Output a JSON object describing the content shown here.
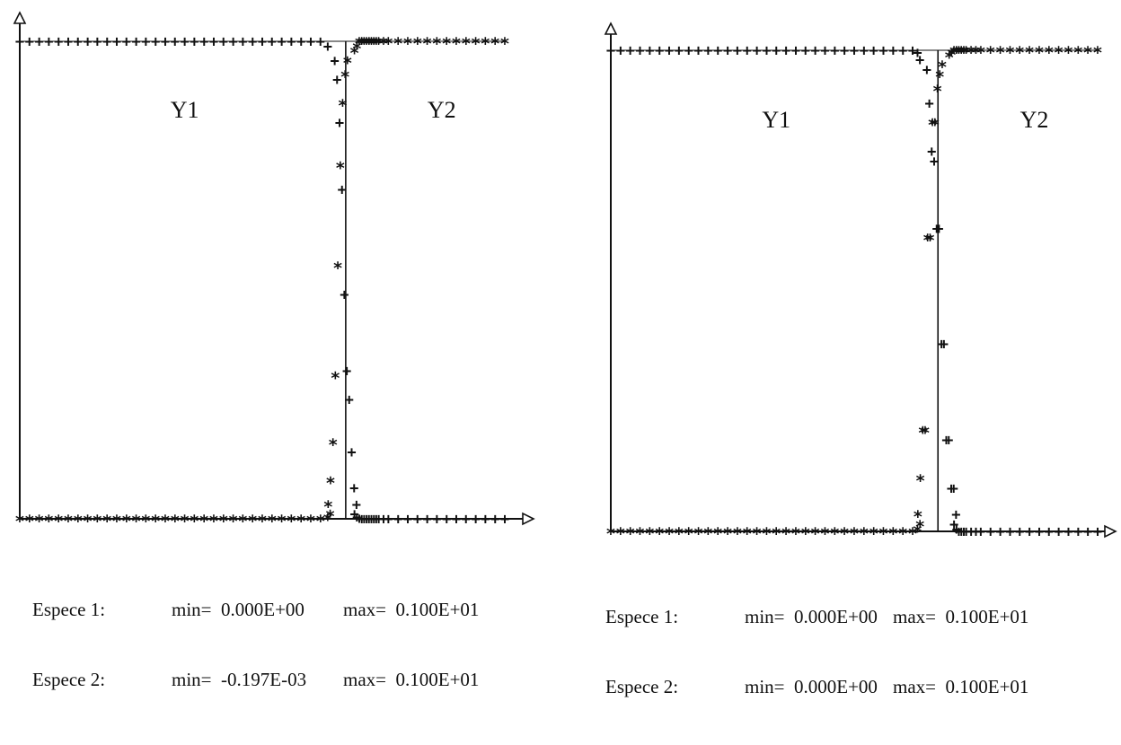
{
  "chart_data": [
    {
      "type": "scatter",
      "region_labels": [
        "Y1",
        "Y2"
      ],
      "x": [
        0.0,
        0.02,
        0.04,
        0.06,
        0.08,
        0.1,
        0.12,
        0.14,
        0.16,
        0.18,
        0.2,
        0.22,
        0.24,
        0.26,
        0.28,
        0.3,
        0.32,
        0.34,
        0.36,
        0.38,
        0.4,
        0.42,
        0.44,
        0.46,
        0.48,
        0.5,
        0.52,
        0.54,
        0.56,
        0.58,
        0.6,
        0.62,
        0.635,
        0.64,
        0.645,
        0.65,
        0.655,
        0.66,
        0.665,
        0.67,
        0.675,
        0.68,
        0.685,
        0.69,
        0.695,
        0.7,
        0.705,
        0.71,
        0.715,
        0.72,
        0.725,
        0.73,
        0.735,
        0.74,
        0.75,
        0.76,
        0.78,
        0.8,
        0.82,
        0.84,
        0.86,
        0.88,
        0.9,
        0.92,
        0.94,
        0.96,
        0.98,
        1.0
      ],
      "series": [
        {
          "marker": "+",
          "values": [
            1,
            1,
            1,
            1,
            1,
            1,
            1,
            1,
            1,
            1,
            1,
            1,
            1,
            1,
            1,
            1,
            1,
            1,
            1,
            1,
            1,
            1,
            1,
            1,
            1,
            1,
            1,
            1,
            1,
            1,
            1,
            1,
            0.99,
            0.96,
            0.92,
            0.83,
            0.69,
            0.47,
            0.31,
            0.25,
            0.14,
            0.065,
            0.03,
            0.01,
            0.004,
            0.001,
            0,
            0,
            0,
            0,
            0,
            0,
            0,
            0,
            0,
            0,
            0,
            0,
            0,
            0,
            0,
            0,
            0,
            0,
            0,
            0,
            0,
            0
          ]
        },
        {
          "marker": "*",
          "values": [
            0,
            0,
            0,
            0,
            0,
            0,
            0,
            0,
            0,
            0,
            0,
            0,
            0,
            0,
            0,
            0,
            0,
            0,
            0,
            0,
            0,
            0,
            0,
            0,
            0,
            0,
            0,
            0,
            0,
            0,
            0,
            0,
            0.003,
            0.01,
            0.03,
            0.08,
            0.16,
            0.3,
            0.53,
            0.74,
            0.87,
            0.93,
            0.96,
            0.98,
            0.99,
            1,
            1,
            1,
            1,
            1,
            1,
            1,
            1,
            1,
            1,
            1,
            1,
            1,
            1,
            1,
            1,
            1,
            1,
            1,
            1,
            1,
            1,
            1
          ]
        }
      ],
      "xlim": [
        0,
        1
      ],
      "ylim": [
        0,
        1
      ],
      "interface_x": 0.672,
      "stats": [
        {
          "label": "Espece 1:",
          "min": "min=  0.000E+00",
          "max": "max=  0.100E+01"
        },
        {
          "label": "Espece 2:",
          "min": "min=  -0.197E-03",
          "max": "max=  0.100E+01"
        }
      ]
    },
    {
      "type": "scatter",
      "region_labels": [
        "Y1",
        "Y2"
      ],
      "x": [
        0.0,
        0.02,
        0.04,
        0.06,
        0.08,
        0.1,
        0.12,
        0.14,
        0.16,
        0.18,
        0.2,
        0.22,
        0.24,
        0.26,
        0.28,
        0.3,
        0.32,
        0.34,
        0.36,
        0.38,
        0.4,
        0.42,
        0.44,
        0.46,
        0.48,
        0.5,
        0.52,
        0.54,
        0.56,
        0.58,
        0.6,
        0.62,
        0.63,
        0.635,
        0.64,
        0.645,
        0.65,
        0.655,
        0.66,
        0.665,
        0.67,
        0.675,
        0.68,
        0.685,
        0.69,
        0.695,
        0.7,
        0.705,
        0.71,
        0.715,
        0.72,
        0.725,
        0.73,
        0.74,
        0.75,
        0.76,
        0.78,
        0.8,
        0.82,
        0.84,
        0.86,
        0.88,
        0.9,
        0.92,
        0.94,
        0.96,
        0.98,
        1.0
      ],
      "series": [
        {
          "marker": "+",
          "values": [
            1,
            1,
            1,
            1,
            1,
            1,
            1,
            1,
            1,
            1,
            1,
            1,
            1,
            1,
            1,
            1,
            1,
            1,
            1,
            1,
            1,
            1,
            1,
            1,
            1,
            1,
            1,
            1,
            1,
            1,
            1,
            1,
            0.995,
            0.98,
            0.96,
            0.89,
            0.79,
            0.77,
            0.63,
            0.63,
            0.39,
            0.39,
            0.19,
            0.19,
            0.09,
            0.09,
            0.035,
            0.015,
            0.005,
            0,
            0,
            0,
            0,
            0,
            0,
            0,
            0,
            0,
            0,
            0,
            0,
            0,
            0,
            0,
            0,
            0,
            0,
            0
          ]
        },
        {
          "marker": "*",
          "values": [
            0,
            0,
            0,
            0,
            0,
            0,
            0,
            0,
            0,
            0,
            0,
            0,
            0,
            0,
            0,
            0,
            0,
            0,
            0,
            0,
            0,
            0,
            0,
            0,
            0,
            0,
            0,
            0,
            0,
            0,
            0,
            0,
            0.005,
            0.015,
            0.035,
            0.11,
            0.21,
            0.21,
            0.61,
            0.61,
            0.85,
            0.85,
            0.92,
            0.95,
            0.97,
            0.99,
            0.995,
            1,
            1,
            1,
            1,
            1,
            1,
            1,
            1,
            1,
            1,
            1,
            1,
            1,
            1,
            1,
            1,
            1,
            1,
            1,
            1,
            1
          ]
        }
      ],
      "xlim": [
        0,
        1
      ],
      "ylim": [
        0,
        1
      ],
      "interface_x": 0.672,
      "stats": [
        {
          "label": "Espece 1:",
          "min": "min=  0.000E+00",
          "max": "max=  0.100E+01"
        },
        {
          "label": "Espece 2:",
          "min": "min=  0.000E+00",
          "max": "max=  0.100E+01"
        }
      ]
    }
  ]
}
